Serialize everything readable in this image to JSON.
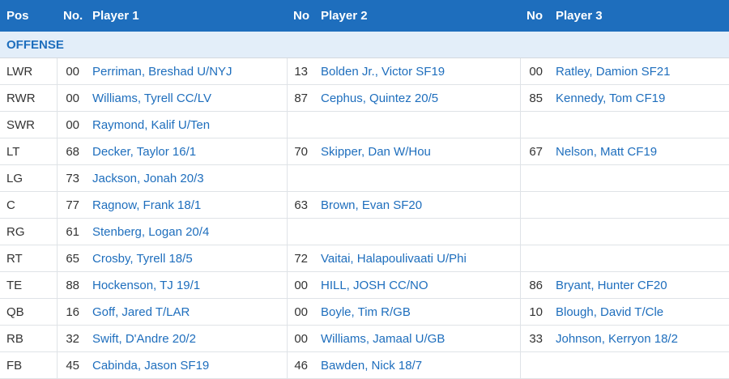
{
  "header": {
    "pos": "Pos",
    "no1": "No.",
    "player1": "Player 1",
    "no2": "No",
    "player2": "Player 2",
    "no3": "No",
    "player3": "Player 3"
  },
  "section": {
    "title": "OFFENSE"
  },
  "rows": [
    {
      "pos": "LWR",
      "p1_no": "00",
      "p1": "Perriman, Breshad U/NYJ",
      "p2_no": "13",
      "p2": "Bolden Jr., Victor SF19",
      "p3_no": "00",
      "p3": "Ratley, Damion SF21"
    },
    {
      "pos": "RWR",
      "p1_no": "00",
      "p1": "Williams, Tyrell CC/LV",
      "p2_no": "87",
      "p2": "Cephus, Quintez 20/5",
      "p3_no": "85",
      "p3": "Kennedy, Tom CF19"
    },
    {
      "pos": "SWR",
      "p1_no": "00",
      "p1": "Raymond, Kalif U/Ten",
      "p2_no": "",
      "p2": "",
      "p3_no": "",
      "p3": ""
    },
    {
      "pos": "LT",
      "p1_no": "68",
      "p1": "Decker, Taylor 16/1",
      "p2_no": "70",
      "p2": "Skipper, Dan W/Hou",
      "p3_no": "67",
      "p3": "Nelson, Matt CF19"
    },
    {
      "pos": "LG",
      "p1_no": "73",
      "p1": "Jackson, Jonah 20/3",
      "p2_no": "",
      "p2": "",
      "p3_no": "",
      "p3": ""
    },
    {
      "pos": "C",
      "p1_no": "77",
      "p1": "Ragnow, Frank 18/1",
      "p2_no": "63",
      "p2": "Brown, Evan SF20",
      "p3_no": "",
      "p3": ""
    },
    {
      "pos": "RG",
      "p1_no": "61",
      "p1": "Stenberg, Logan 20/4",
      "p2_no": "",
      "p2": "",
      "p3_no": "",
      "p3": ""
    },
    {
      "pos": "RT",
      "p1_no": "65",
      "p1": "Crosby, Tyrell 18/5",
      "p2_no": "72",
      "p2": "Vaitai, Halapoulivaati U/Phi",
      "p3_no": "",
      "p3": ""
    },
    {
      "pos": "TE",
      "p1_no": "88",
      "p1": "Hockenson, TJ 19/1",
      "p2_no": "00",
      "p2": "HILL, JOSH CC/NO",
      "p3_no": "86",
      "p3": "Bryant, Hunter CF20"
    },
    {
      "pos": "QB",
      "p1_no": "16",
      "p1": "Goff, Jared T/LAR",
      "p2_no": "00",
      "p2": "Boyle, Tim R/GB",
      "p3_no": "10",
      "p3": "Blough, David T/Cle"
    },
    {
      "pos": "RB",
      "p1_no": "32",
      "p1": "Swift, D'Andre 20/2",
      "p2_no": "00",
      "p2": "Williams, Jamaal U/GB",
      "p3_no": "33",
      "p3": "Johnson, Kerryon 18/2"
    },
    {
      "pos": "FB",
      "p1_no": "45",
      "p1": "Cabinda, Jason SF19",
      "p2_no": "46",
      "p2": "Bawden, Nick 18/7",
      "p3_no": "",
      "p3": ""
    }
  ],
  "colors": {
    "header_bg": "#1e6ebd",
    "section_bg": "#e3eef9",
    "link": "#1e6ebd",
    "text": "#333333"
  }
}
